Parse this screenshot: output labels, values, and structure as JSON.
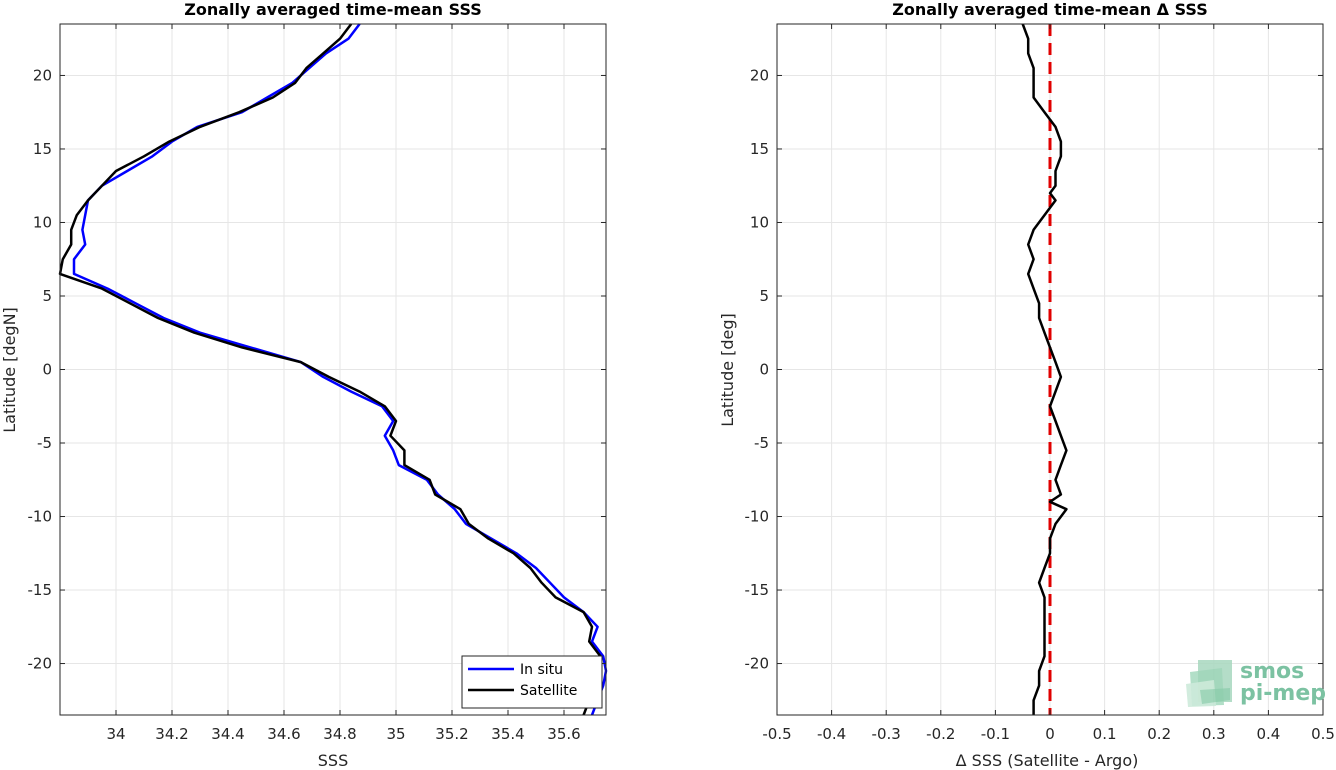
{
  "chart_data": [
    {
      "type": "line",
      "title": "Zonally averaged time-mean SSS",
      "xlabel": "SSS",
      "ylabel": "Latitude [degN]",
      "xlim": [
        33.8,
        35.75
      ],
      "ylim": [
        -23.5,
        23.5
      ],
      "xticks": [
        34,
        34.2,
        34.4,
        34.6,
        34.8,
        35,
        35.2,
        35.4,
        35.6
      ],
      "xtick_labels": [
        "34",
        "34.2",
        "34.4",
        "34.6",
        "34.8",
        "35",
        "35.2",
        "35.4",
        "35.6"
      ],
      "yticks": [
        -20,
        -15,
        -10,
        -5,
        0,
        5,
        10,
        15,
        20
      ],
      "ytick_labels": [
        "-20",
        "-15",
        "-10",
        "-5",
        "0",
        "5",
        "10",
        "15",
        "20"
      ],
      "grid": true,
      "legend_position": "bottom-right",
      "series": [
        {
          "name": "In situ",
          "color": "#0000ff",
          "points": [
            [
              34.87,
              23.5
            ],
            [
              34.83,
              22.5
            ],
            [
              34.75,
              21.5
            ],
            [
              34.69,
              20.5
            ],
            [
              34.63,
              19.5
            ],
            [
              34.54,
              18.5
            ],
            [
              34.45,
              17.5
            ],
            [
              34.29,
              16.5
            ],
            [
              34.2,
              15.5
            ],
            [
              34.13,
              14.5
            ],
            [
              34.04,
              13.5
            ],
            [
              33.95,
              12.5
            ],
            [
              33.9,
              11.5
            ],
            [
              33.89,
              10.5
            ],
            [
              33.88,
              9.5
            ],
            [
              33.89,
              8.5
            ],
            [
              33.85,
              7.5
            ],
            [
              33.85,
              6.5
            ],
            [
              33.97,
              5.5
            ],
            [
              34.07,
              4.5
            ],
            [
              34.17,
              3.5
            ],
            [
              34.3,
              2.5
            ],
            [
              34.48,
              1.5
            ],
            [
              34.66,
              0.5
            ],
            [
              34.74,
              -0.5
            ],
            [
              34.84,
              -1.5
            ],
            [
              34.95,
              -2.5
            ],
            [
              34.99,
              -3.5
            ],
            [
              34.96,
              -4.5
            ],
            [
              34.99,
              -5.5
            ],
            [
              35.01,
              -6.5
            ],
            [
              35.11,
              -7.5
            ],
            [
              35.15,
              -8.5
            ],
            [
              35.21,
              -9.5
            ],
            [
              35.25,
              -10.5
            ],
            [
              35.34,
              -11.5
            ],
            [
              35.43,
              -12.5
            ],
            [
              35.5,
              -13.5
            ],
            [
              35.55,
              -14.5
            ],
            [
              35.6,
              -15.5
            ],
            [
              35.67,
              -16.5
            ],
            [
              35.72,
              -17.5
            ],
            [
              35.7,
              -18.5
            ],
            [
              35.74,
              -19.5
            ],
            [
              35.75,
              -20.5
            ],
            [
              35.74,
              -21.5
            ],
            [
              35.72,
              -22.5
            ],
            [
              35.7,
              -23.5
            ]
          ]
        },
        {
          "name": "Satellite",
          "color": "#000000",
          "points": [
            [
              34.84,
              23.5
            ],
            [
              34.8,
              22.5
            ],
            [
              34.74,
              21.5
            ],
            [
              34.68,
              20.5
            ],
            [
              34.64,
              19.5
            ],
            [
              34.56,
              18.5
            ],
            [
              34.44,
              17.5
            ],
            [
              34.3,
              16.5
            ],
            [
              34.19,
              15.5
            ],
            [
              34.1,
              14.5
            ],
            [
              34.0,
              13.5
            ],
            [
              33.95,
              12.5
            ],
            [
              33.9,
              11.5
            ],
            [
              33.86,
              10.5
            ],
            [
              33.84,
              9.5
            ],
            [
              33.84,
              8.5
            ],
            [
              33.81,
              7.5
            ],
            [
              33.8,
              6.5
            ],
            [
              33.95,
              5.5
            ],
            [
              34.05,
              4.5
            ],
            [
              34.15,
              3.5
            ],
            [
              34.28,
              2.5
            ],
            [
              34.45,
              1.5
            ],
            [
              34.66,
              0.5
            ],
            [
              34.76,
              -0.5
            ],
            [
              34.87,
              -1.5
            ],
            [
              34.96,
              -2.5
            ],
            [
              35.0,
              -3.5
            ],
            [
              34.98,
              -4.5
            ],
            [
              35.03,
              -5.5
            ],
            [
              35.03,
              -6.5
            ],
            [
              35.12,
              -7.5
            ],
            [
              35.14,
              -8.5
            ],
            [
              35.23,
              -9.5
            ],
            [
              35.26,
              -10.5
            ],
            [
              35.33,
              -11.5
            ],
            [
              35.42,
              -12.5
            ],
            [
              35.48,
              -13.5
            ],
            [
              35.52,
              -14.5
            ],
            [
              35.57,
              -15.5
            ],
            [
              35.67,
              -16.5
            ],
            [
              35.7,
              -17.5
            ],
            [
              35.69,
              -18.5
            ],
            [
              35.73,
              -19.5
            ],
            [
              35.73,
              -20.5
            ],
            [
              35.7,
              -21.5
            ],
            [
              35.69,
              -22.5
            ],
            [
              35.67,
              -23.5
            ]
          ]
        }
      ]
    },
    {
      "type": "line",
      "title": "Zonally averaged time-mean Δ SSS",
      "xlabel": "Δ SSS (Satellite - Argo)",
      "ylabel": "Latitude [deg]",
      "xlim": [
        -0.5,
        0.5
      ],
      "ylim": [
        -23.5,
        23.5
      ],
      "xticks": [
        -0.5,
        -0.4,
        -0.3,
        -0.2,
        -0.1,
        0,
        0.1,
        0.2,
        0.3,
        0.4,
        0.5
      ],
      "xtick_labels": [
        "-0.5",
        "-0.4",
        "-0.3",
        "-0.2",
        "-0.1",
        "0",
        "0.1",
        "0.2",
        "0.3",
        "0.4",
        "0.5"
      ],
      "yticks": [
        -20,
        -15,
        -10,
        -5,
        0,
        5,
        10,
        15,
        20
      ],
      "ytick_labels": [
        "-20",
        "-15",
        "-10",
        "-5",
        "0",
        "5",
        "10",
        "15",
        "20"
      ],
      "grid": true,
      "reference_line": {
        "x": 0,
        "color": "#e00000",
        "style": "dashed"
      },
      "series": [
        {
          "name": "",
          "color": "#000000",
          "points": [
            [
              -0.05,
              23.5
            ],
            [
              -0.04,
              22.5
            ],
            [
              -0.04,
              21.5
            ],
            [
              -0.03,
              20.5
            ],
            [
              -0.03,
              19.5
            ],
            [
              -0.03,
              18.5
            ],
            [
              -0.01,
              17.5
            ],
            [
              0.01,
              16.5
            ],
            [
              0.02,
              15.5
            ],
            [
              0.02,
              14.5
            ],
            [
              0.01,
              13.5
            ],
            [
              0.01,
              12.5
            ],
            [
              0.0,
              12.0
            ],
            [
              0.01,
              11.5
            ],
            [
              -0.01,
              10.5
            ],
            [
              -0.03,
              9.5
            ],
            [
              -0.04,
              8.5
            ],
            [
              -0.03,
              7.5
            ],
            [
              -0.04,
              6.5
            ],
            [
              -0.03,
              5.5
            ],
            [
              -0.02,
              4.5
            ],
            [
              -0.02,
              3.5
            ],
            [
              -0.01,
              2.5
            ],
            [
              0.0,
              1.5
            ],
            [
              0.01,
              0.5
            ],
            [
              0.02,
              -0.5
            ],
            [
              0.01,
              -1.5
            ],
            [
              0.0,
              -2.5
            ],
            [
              0.01,
              -3.5
            ],
            [
              0.02,
              -4.5
            ],
            [
              0.03,
              -5.5
            ],
            [
              0.02,
              -6.5
            ],
            [
              0.01,
              -7.5
            ],
            [
              0.02,
              -8.5
            ],
            [
              0.0,
              -9.0
            ],
            [
              0.03,
              -9.5
            ],
            [
              0.01,
              -10.5
            ],
            [
              0.0,
              -11.5
            ],
            [
              0.0,
              -12.5
            ],
            [
              -0.01,
              -13.5
            ],
            [
              -0.02,
              -14.5
            ],
            [
              -0.01,
              -15.5
            ],
            [
              -0.01,
              -16.5
            ],
            [
              -0.01,
              -17.5
            ],
            [
              -0.01,
              -18.5
            ],
            [
              -0.01,
              -19.5
            ],
            [
              -0.02,
              -20.5
            ],
            [
              -0.02,
              -21.5
            ],
            [
              -0.03,
              -22.5
            ],
            [
              -0.03,
              -23.5
            ]
          ]
        }
      ]
    }
  ],
  "logo": {
    "line1": "smos",
    "line2": "pi-mep",
    "color": "#7cc2a2"
  }
}
